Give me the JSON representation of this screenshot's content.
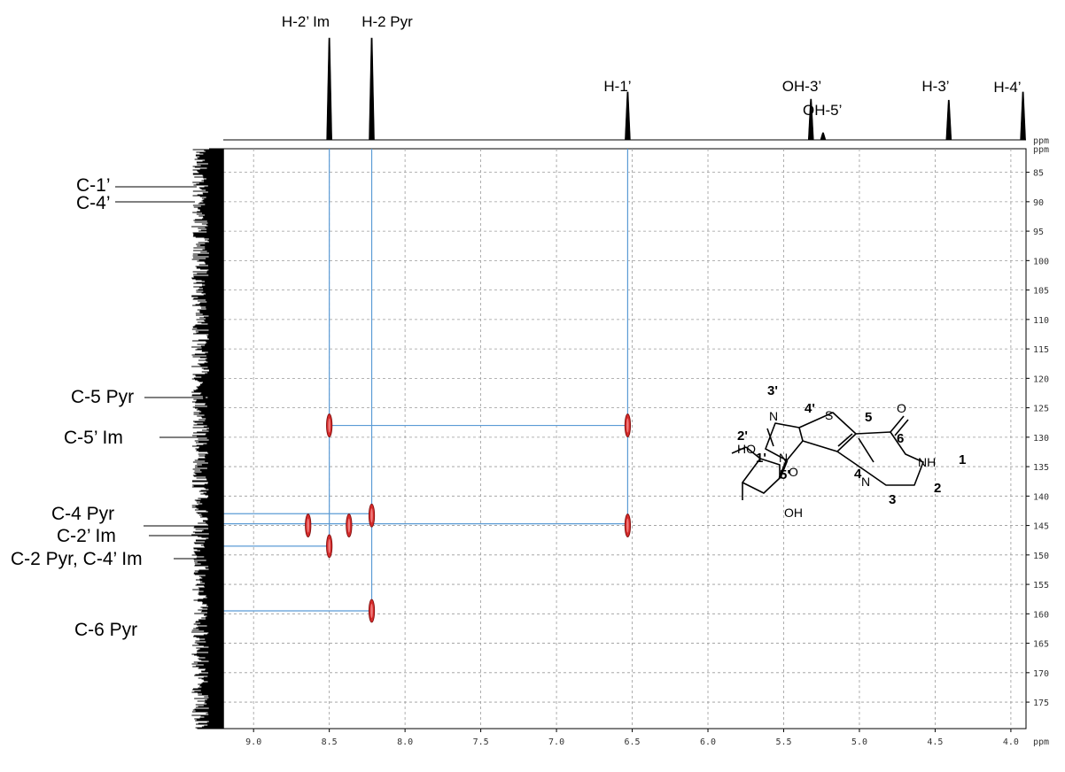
{
  "chart_data": {
    "type": "scatter",
    "chart_kind": "2D HMBC NMR spectrum",
    "x_axis": {
      "unit": "ppm",
      "reversed": true,
      "xlim": [
        9.2,
        3.9
      ],
      "ticks": [
        9.0,
        8.5,
        8.0,
        7.5,
        7.0,
        6.5,
        6.0,
        5.5,
        5.0,
        4.5,
        4.0
      ],
      "tick_labels": [
        "9.0",
        "8.5",
        "8.0",
        "7.5",
        "7.0",
        "6.5",
        "6.0",
        "5.5",
        "5.0",
        "4.5",
        "4.0"
      ]
    },
    "y_axis": {
      "unit": "ppm",
      "ylim": [
        81,
        179.5
      ],
      "ticks": [
        85,
        90,
        95,
        100,
        105,
        110,
        115,
        120,
        125,
        130,
        135,
        140,
        145,
        150,
        155,
        160,
        165,
        170,
        175
      ],
      "tick_labels": [
        "85",
        "90",
        "95",
        "100",
        "105",
        "110",
        "115",
        "120",
        "125",
        "130",
        "135",
        "140",
        "145",
        "150",
        "155",
        "160",
        "165",
        "170",
        "175"
      ]
    },
    "grid": true,
    "proton_peaks": [
      {
        "label": "H-2’ Im",
        "ppm": 8.5,
        "height": 1.0
      },
      {
        "label": "H-2 Pyr",
        "ppm": 8.22,
        "height": 1.0
      },
      {
        "label": "H-1’",
        "ppm": 6.53,
        "height": 0.47
      },
      {
        "label": "OH-3’",
        "ppm": 5.32,
        "height": 0.4
      },
      {
        "label": "OH-5’",
        "ppm": 5.24,
        "height": 0.07
      },
      {
        "label": "H-3’",
        "ppm": 4.41,
        "height": 0.39
      },
      {
        "label": "H-4’",
        "ppm": 3.92,
        "height": 0.47
      }
    ],
    "carbon_labels": [
      {
        "label": "C-1’",
        "ppm": 86.5
      },
      {
        "label": "C-4’",
        "ppm": 88.3
      },
      {
        "label": "C-5 Pyr",
        "ppm": 121.0
      },
      {
        "label": "C-5’ Im",
        "ppm": 128.0
      },
      {
        "label": "C-4 Pyr",
        "ppm": 143.0
      },
      {
        "label": "C-2’ Im",
        "ppm": 144.7
      },
      {
        "label": "C-2 Pyr, C-4’ Im",
        "ppm": 148.5
      },
      {
        "label": "C-6 Pyr",
        "ppm": 159.5
      }
    ],
    "cross_peaks": [
      {
        "x": 8.5,
        "y": 128.0
      },
      {
        "x": 6.53,
        "y": 128.0
      },
      {
        "x": 8.22,
        "y": 143.3
      },
      {
        "x": 8.37,
        "y": 145.0
      },
      {
        "x": 8.64,
        "y": 145.0
      },
      {
        "x": 6.53,
        "y": 145.0
      },
      {
        "x": 8.5,
        "y": 148.5
      },
      {
        "x": 8.22,
        "y": 159.5
      }
    ],
    "connectors": [
      {
        "x_from": 8.5,
        "x_to": 6.53,
        "y": 128.0
      },
      {
        "x_from": 9.2,
        "x_to": 8.22,
        "y": 143.0
      },
      {
        "x_from": 9.2,
        "x_to": 6.53,
        "y": 144.7
      },
      {
        "x_from": 9.2,
        "x_to": 8.5,
        "y": 148.5
      },
      {
        "x_from": 9.2,
        "x_to": 8.22,
        "y": 159.5
      }
    ],
    "vertical_guides": [
      {
        "x": 8.5,
        "y_to": 148.5
      },
      {
        "x": 8.22,
        "y_to": 159.5
      },
      {
        "x": 6.53,
        "y_to": 145.0
      }
    ],
    "colors": {
      "crosspeak": "#d42a2a",
      "connector": "#5b9bd5",
      "grid": "#9a9a9a",
      "spectrum": "#000000"
    }
  },
  "structure": {
    "atoms": {
      "S": "S",
      "O": "O",
      "N3p": "N",
      "N1p": "N",
      "N3": "N",
      "NH": "NH",
      "HO": "HO",
      "OH": "OH",
      "Oring": "O"
    },
    "labels": {
      "l3p": "3'",
      "l4p": "4'",
      "l5": "5",
      "l6": "6",
      "l2p": "2'",
      "l1p": "1'",
      "l1": "1",
      "l5p": "5'",
      "l4": "4",
      "l2": "2",
      "l3": "3"
    }
  }
}
